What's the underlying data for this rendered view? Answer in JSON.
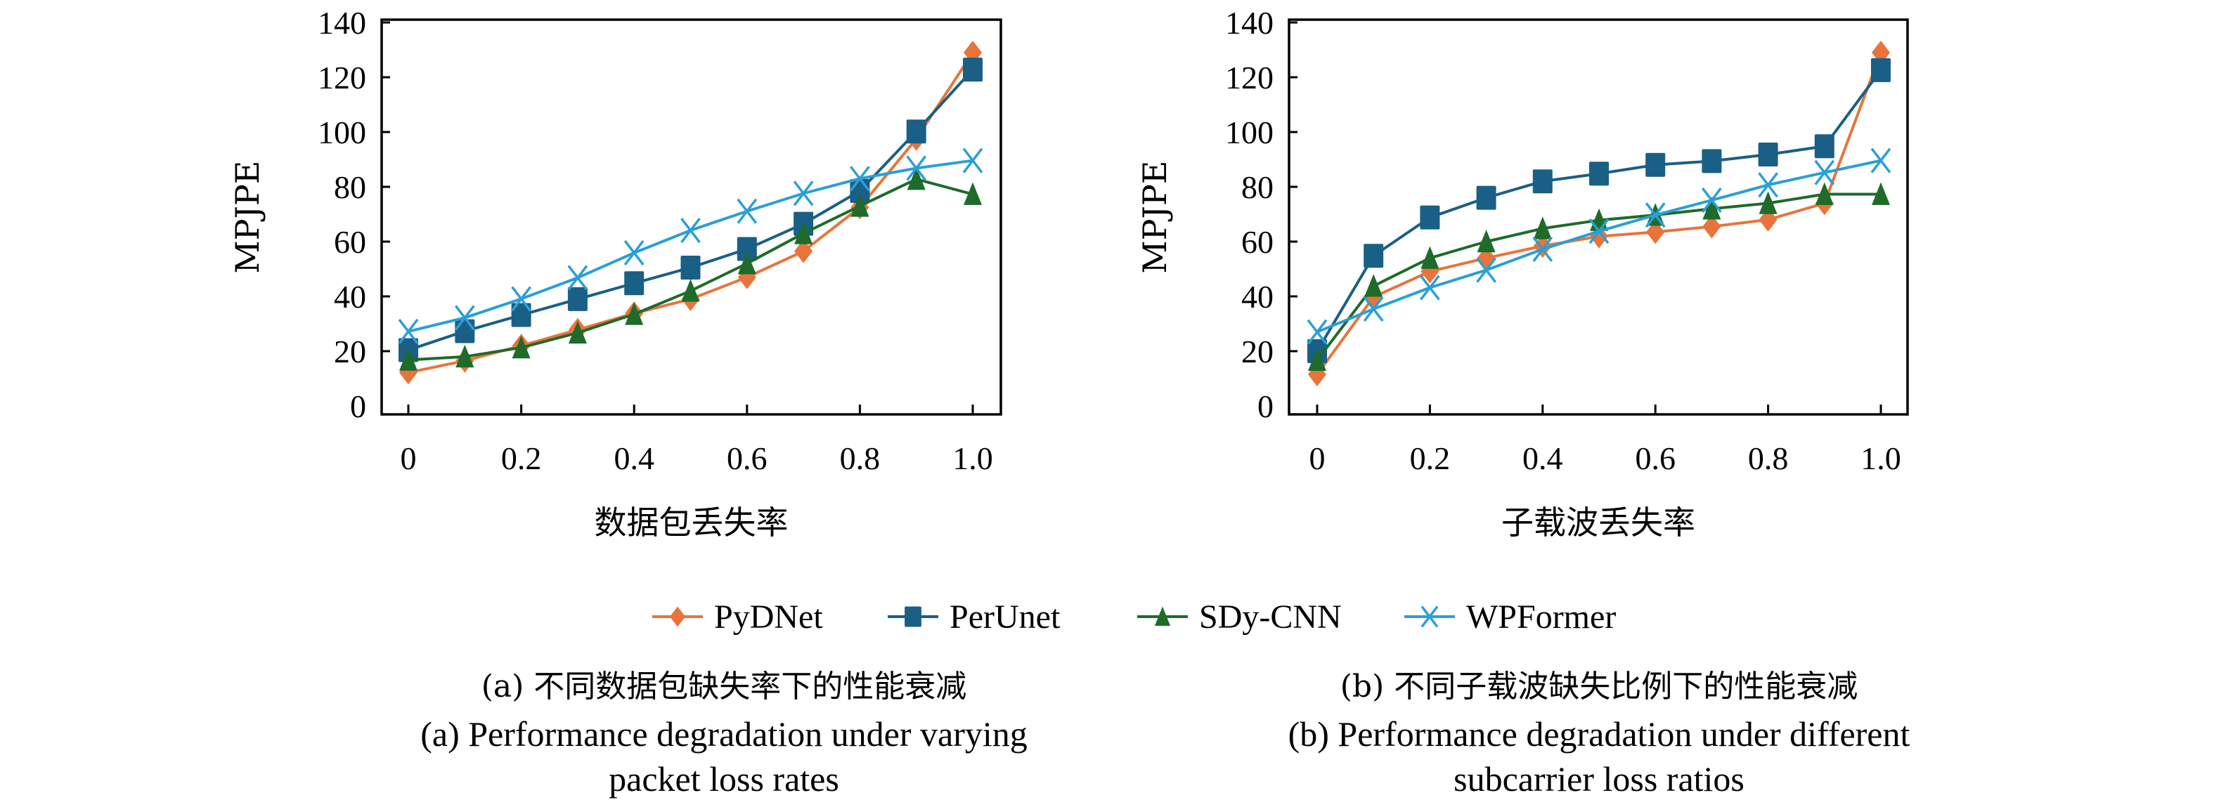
{
  "chart_data": [
    {
      "id": "a",
      "type": "line",
      "title": "",
      "xlabel": "数据包丢失率",
      "ylabel": "MPJPE",
      "x": [
        0,
        0.1,
        0.2,
        0.3,
        0.4,
        0.5,
        0.6,
        0.7,
        0.8,
        0.9,
        1.0
      ],
      "xticks": [
        0,
        0.2,
        0.4,
        0.6,
        0.8,
        1.0
      ],
      "xtick_labels": [
        "0",
        "0.2",
        "0.4",
        "0.6",
        "0.8",
        "1.0"
      ],
      "yticks": [
        0,
        20,
        40,
        60,
        80,
        100,
        120,
        140
      ],
      "ytick_labels": [
        "0",
        "20",
        "40",
        "60",
        "80",
        "100",
        "120",
        "140"
      ],
      "xlim": [
        0,
        1.0
      ],
      "ylim": [
        0,
        140
      ],
      "grid": false,
      "series": [
        {
          "name": "PyDNet",
          "marker": "diamond",
          "color": "#E8743B",
          "values": [
            12.2,
            16.5,
            22.0,
            27.8,
            33.8,
            39.0,
            47.0,
            56.5,
            72.5,
            97.5,
            129.0
          ]
        },
        {
          "name": "PerUnet",
          "marker": "square",
          "color": "#1A5F85",
          "values": [
            20.4,
            27.3,
            33.2,
            39.0,
            44.8,
            50.5,
            57.3,
            66.5,
            78.5,
            100.2,
            122.8
          ]
        },
        {
          "name": "SDy-CNN",
          "marker": "triangle",
          "color": "#1E6B2A",
          "values": [
            16.8,
            18.0,
            21.3,
            26.7,
            33.5,
            42.0,
            52.0,
            63.0,
            73.0,
            82.8,
            77.3
          ]
        },
        {
          "name": "WPFormer",
          "marker": "x",
          "color": "#2A9FD6",
          "values": [
            27.2,
            32.2,
            39.1,
            46.8,
            55.9,
            64.1,
            71.1,
            77.6,
            83.0,
            86.8,
            89.6
          ]
        }
      ],
      "caption_zh": "(a) 不同数据包缺失率下的性能衰减",
      "caption_en_line1": "(a) Performance degradation under varying",
      "caption_en_line2": "packet loss rates"
    },
    {
      "id": "b",
      "type": "line",
      "title": "",
      "xlabel": "子载波丢失率",
      "ylabel": "MPJPE",
      "x": [
        0,
        0.1,
        0.2,
        0.3,
        0.4,
        0.5,
        0.6,
        0.7,
        0.8,
        0.9,
        1.0
      ],
      "xticks": [
        0,
        0.2,
        0.4,
        0.6,
        0.8,
        1.0
      ],
      "xtick_labels": [
        "0",
        "0.2",
        "0.4",
        "0.6",
        "0.8",
        "1.0"
      ],
      "yticks": [
        0,
        20,
        40,
        60,
        80,
        100,
        120,
        140
      ],
      "ytick_labels": [
        "0",
        "20",
        "40",
        "60",
        "80",
        "100",
        "120",
        "140"
      ],
      "xlim": [
        0,
        1.0
      ],
      "ylim": [
        0,
        140
      ],
      "grid": false,
      "series": [
        {
          "name": "PyDNet",
          "marker": "diamond",
          "color": "#E8743B",
          "values": [
            11.5,
            39.8,
            49.1,
            54.0,
            58.4,
            61.9,
            63.5,
            65.5,
            68.0,
            74.0,
            129.0
          ]
        },
        {
          "name": "PerUnet",
          "marker": "square",
          "color": "#1A5F85",
          "values": [
            20.0,
            54.8,
            68.8,
            76.0,
            82.0,
            84.8,
            88.0,
            89.4,
            91.8,
            94.8,
            122.6
          ]
        },
        {
          "name": "SDy-CNN",
          "marker": "triangle",
          "color": "#1E6B2A",
          "values": [
            16.7,
            43.8,
            54.0,
            60.0,
            64.8,
            67.8,
            69.7,
            72.0,
            74.0,
            77.3,
            77.3
          ]
        },
        {
          "name": "WPFormer",
          "marker": "x",
          "color": "#2A9FD6",
          "values": [
            27.0,
            35.4,
            43.2,
            49.6,
            57.2,
            63.8,
            69.7,
            75.1,
            80.7,
            85.2,
            89.6
          ]
        }
      ],
      "caption_zh": "(b) 不同子载波缺失比例下的性能衰减",
      "caption_en_line1": "(b) Performance degradation under different",
      "caption_en_line2": "subcarrier loss ratios"
    }
  ],
  "legend": {
    "placement": "bottom-center",
    "items": [
      {
        "label": "PyDNet",
        "marker": "diamond",
        "color": "#E8743B"
      },
      {
        "label": "PerUnet",
        "marker": "square",
        "color": "#1A5F85"
      },
      {
        "label": "SDy-CNN",
        "marker": "triangle",
        "color": "#1E6B2A"
      },
      {
        "label": "WPFormer",
        "marker": "x",
        "color": "#2A9FD6"
      }
    ]
  }
}
